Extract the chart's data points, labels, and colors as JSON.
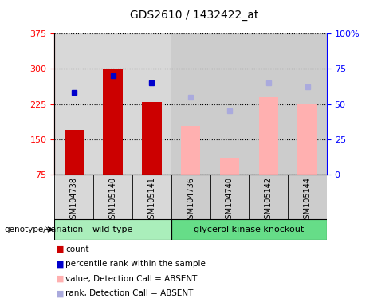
{
  "title": "GDS2610 / 1432422_at",
  "samples": [
    "GSM104738",
    "GSM105140",
    "GSM105141",
    "GSM104736",
    "GSM104740",
    "GSM105142",
    "GSM105144"
  ],
  "wild_type": [
    "GSM104738",
    "GSM105140",
    "GSM105141"
  ],
  "knockout": [
    "GSM104736",
    "GSM104740",
    "GSM105142",
    "GSM105144"
  ],
  "count_values": [
    170,
    300,
    230,
    null,
    null,
    null,
    null
  ],
  "absent_value": [
    null,
    null,
    null,
    178,
    110,
    240,
    225
  ],
  "percentile_rank": [
    58,
    70,
    65,
    null,
    null,
    null,
    null
  ],
  "absent_rank": [
    null,
    null,
    null,
    55,
    45,
    65,
    62
  ],
  "left_ylim": [
    75,
    375
  ],
  "right_ylim": [
    0,
    100
  ],
  "left_yticks": [
    75,
    150,
    225,
    300,
    375
  ],
  "right_yticks": [
    0,
    25,
    50,
    75,
    100
  ],
  "right_yticklabels": [
    "0",
    "25",
    "50",
    "75",
    "100%"
  ],
  "bar_color_red": "#cc0000",
  "bar_color_pink": "#ffb0b0",
  "dot_color_blue": "#0000cc",
  "dot_color_lightblue": "#aaaadd",
  "col_bg_wt": "#d8d8d8",
  "col_bg_ko": "#cccccc",
  "wt_label_bg": "#aaeebb",
  "ko_label_bg": "#66dd88",
  "bar_width": 0.5,
  "legend_items": [
    {
      "color": "#cc0000",
      "label": "count"
    },
    {
      "color": "#0000cc",
      "label": "percentile rank within the sample"
    },
    {
      "color": "#ffb0b0",
      "label": "value, Detection Call = ABSENT"
    },
    {
      "color": "#aaaadd",
      "label": "rank, Detection Call = ABSENT"
    }
  ]
}
